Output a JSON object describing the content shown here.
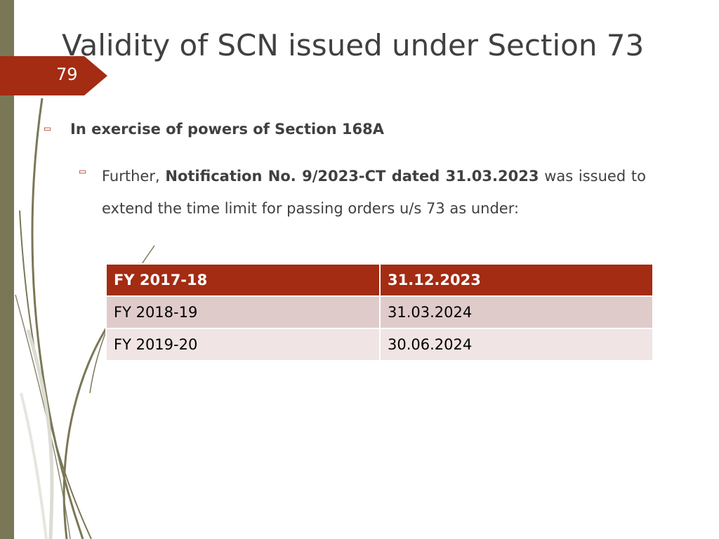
{
  "slide": {
    "title": "Validity of SCN issued under Section 73",
    "number": "79"
  },
  "bullets": {
    "level1": "In exercise of powers of Section 168A",
    "level2": {
      "prefix": "Further, ",
      "bold": "Notification No. 9/2023-CT dated 31.03.2023",
      "suffix": " was issued to extend the time limit for passing orders u/s 73 as under:"
    }
  },
  "table": {
    "rows": [
      [
        "FY 2017-18",
        "31.12.2023"
      ],
      [
        "FY 2018-19",
        "31.03.2024"
      ],
      [
        "FY 2019-20",
        "30.06.2024"
      ]
    ]
  },
  "colors": {
    "accent": "#a32c13",
    "sidebar": "#7a7757",
    "row_odd": "#e0cbcb",
    "row_even": "#f0e4e4"
  }
}
